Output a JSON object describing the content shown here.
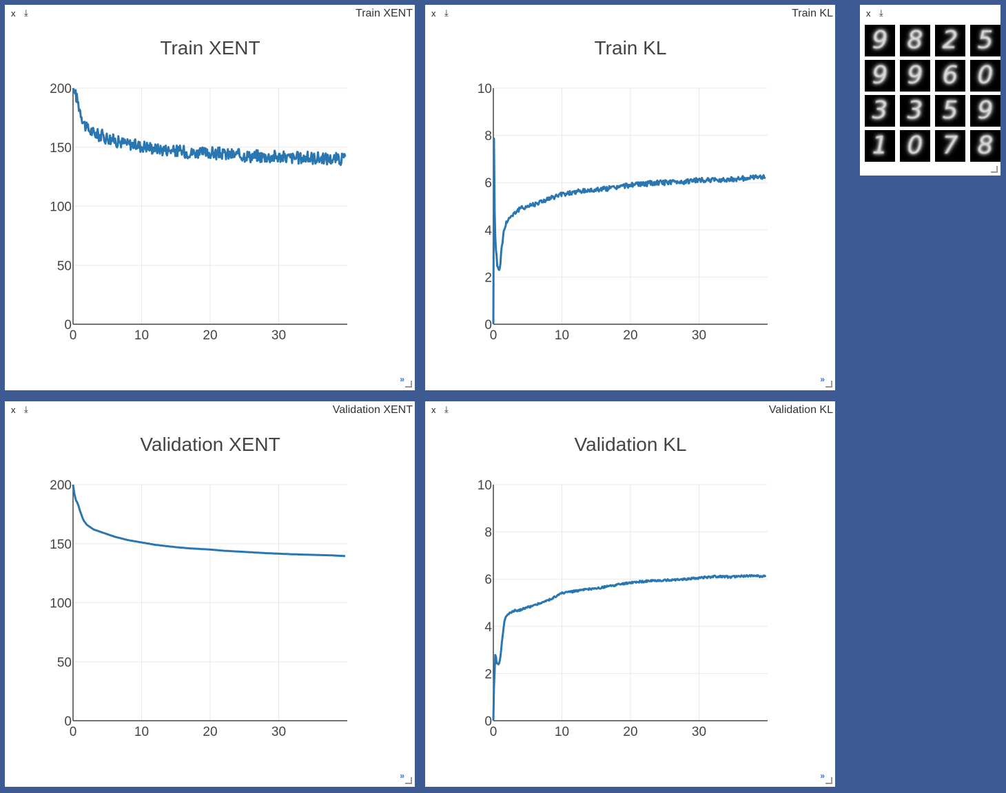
{
  "panes": [
    {
      "id": "train-xent",
      "title": "Train XENT",
      "close_label": "x",
      "download_label": "⤓",
      "more_label": "»",
      "chart_data": {
        "type": "line",
        "title": "Train XENT",
        "xlabel": "",
        "ylabel": "",
        "xlim": [
          0,
          40
        ],
        "ylim": [
          0,
          200
        ],
        "xticks": [
          0,
          10,
          20,
          30
        ],
        "yticks": [
          0,
          50,
          100,
          150,
          200
        ],
        "grid": true,
        "noise": 6,
        "series": [
          {
            "x": [
              0,
              0.5,
              1,
              1.5,
              2,
              3,
              4,
              5,
              6,
              8,
              10,
              12,
              15,
              18,
              20,
              22,
              25,
              28,
              30,
              32,
              35,
              38,
              39.7
            ],
            "y": [
              200,
              192,
              182,
              172,
              166,
              162,
              160,
              158,
              156,
              153,
              151,
              149,
              147,
              145,
              145,
              144,
              143,
              142,
              142,
              141,
              141,
              140,
              140
            ]
          }
        ]
      }
    },
    {
      "id": "train-kl",
      "title": "Train KL",
      "close_label": "x",
      "download_label": "⤓",
      "more_label": "»",
      "chart_data": {
        "type": "line",
        "title": "Train KL",
        "xlabel": "",
        "ylabel": "",
        "xlim": [
          0,
          40
        ],
        "ylim": [
          0,
          10
        ],
        "xticks": [
          0,
          10,
          20,
          30
        ],
        "yticks": [
          0,
          2,
          4,
          6,
          8,
          10
        ],
        "grid": true,
        "noise": 0.12,
        "series": [
          {
            "x": [
              0,
              0.05,
              0.15,
              0.3,
              0.6,
              0.8,
              1,
              1.2,
              1.5,
              2,
              3,
              4,
              5,
              6,
              8,
              10,
              12,
              15,
              18,
              20,
              22,
              25,
              28,
              30,
              32,
              35,
              38,
              39.7
            ],
            "y": [
              0,
              10,
              5.2,
              3.5,
              2.4,
              2.3,
              2.5,
              3.2,
              3.9,
              4.4,
              4.7,
              4.9,
              5.0,
              5.1,
              5.3,
              5.5,
              5.6,
              5.7,
              5.8,
              5.9,
              5.95,
              6.0,
              6.05,
              6.1,
              6.1,
              6.15,
              6.2,
              6.25
            ]
          }
        ]
      }
    },
    {
      "id": "validation-xent",
      "title": "Validation XENT",
      "close_label": "x",
      "download_label": "⤓",
      "more_label": "»",
      "chart_data": {
        "type": "line",
        "title": "Validation XENT",
        "xlabel": "",
        "ylabel": "",
        "xlim": [
          0,
          40
        ],
        "ylim": [
          0,
          200
        ],
        "xticks": [
          0,
          10,
          20,
          30
        ],
        "yticks": [
          0,
          50,
          100,
          150,
          200
        ],
        "grid": true,
        "noise": 0,
        "series": [
          {
            "x": [
              0,
              0.3,
              0.7,
              1,
              1.5,
              2,
              3,
              4,
              5,
              6,
              8,
              10,
              12,
              15,
              17,
              20,
              22,
              25,
              28,
              30,
              32,
              35,
              38,
              39.7
            ],
            "y": [
              200,
              188,
              184,
              178,
              170,
              166,
              162,
              160,
              158,
              156,
              153,
              151,
              149,
              147,
              146,
              145,
              144,
              143,
              142,
              141.5,
              141,
              140.5,
              140,
              139.5
            ]
          }
        ]
      }
    },
    {
      "id": "validation-kl",
      "title": "Validation KL",
      "close_label": "x",
      "download_label": "⤓",
      "more_label": "»",
      "chart_data": {
        "type": "line",
        "title": "Validation KL",
        "xlabel": "",
        "ylabel": "",
        "xlim": [
          0,
          40
        ],
        "ylim": [
          0,
          10
        ],
        "xticks": [
          0,
          10,
          20,
          30
        ],
        "yticks": [
          0,
          2,
          4,
          6,
          8,
          10
        ],
        "grid": true,
        "noise": 0.05,
        "series": [
          {
            "x": [
              0,
              0.1,
              0.3,
              0.5,
              0.8,
              1,
              1.3,
              1.6,
              2,
              2.5,
              3,
              4,
              5,
              6,
              8,
              10,
              12,
              15,
              18,
              20,
              22,
              25,
              28,
              30,
              32,
              35,
              38,
              39.7
            ],
            "y": [
              0,
              1.5,
              2.9,
              2.4,
              2.4,
              2.6,
              3.5,
              4.2,
              4.5,
              4.6,
              4.65,
              4.7,
              4.8,
              4.9,
              5.1,
              5.4,
              5.5,
              5.6,
              5.75,
              5.85,
              5.9,
              5.95,
              6.0,
              6.05,
              6.1,
              6.1,
              6.15,
              6.1
            ]
          }
        ]
      }
    }
  ],
  "image_pane": {
    "close_label": "x",
    "download_label": "⤓",
    "digits": [
      "9",
      "8",
      "2",
      "5",
      "9",
      "9",
      "6",
      "0",
      "3",
      "3",
      "5",
      "9",
      "1",
      "0",
      "7",
      "8"
    ]
  }
}
